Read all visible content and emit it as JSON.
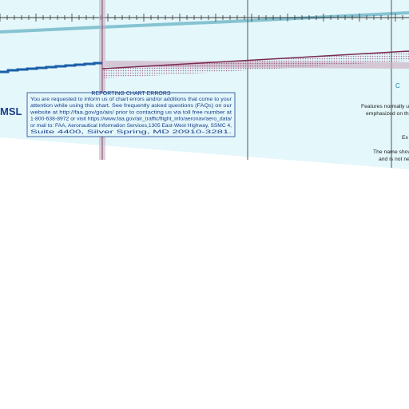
{
  "map": {
    "edge_label": "MSL",
    "notice": {
      "title": "REPORTING CHART ERRORS",
      "lines": [
        "You are requested to inform us of chart errors and/or additions that come to your",
        "attention while using this chart. See frequently asked questions (FAQs) on our",
        "website at http://faa.gov/go/ais/ prior to contacting us via toll free number at",
        "1-800-638-8972 or visit https://www.faa.gov/air_traffic/flight_info/aeronav/aero_data/",
        "or mail to: FAA, Aeronautical Information Services,1305 East-West Highway, SSMC 4,",
        "Suite 4400, Silver Spring, MD 20910-3281."
      ]
    },
    "side_texts": [
      "C",
      "Features normally us",
      "emphasized on this s",
      "Ex",
      "The name show",
      "and is not ne"
    ]
  }
}
